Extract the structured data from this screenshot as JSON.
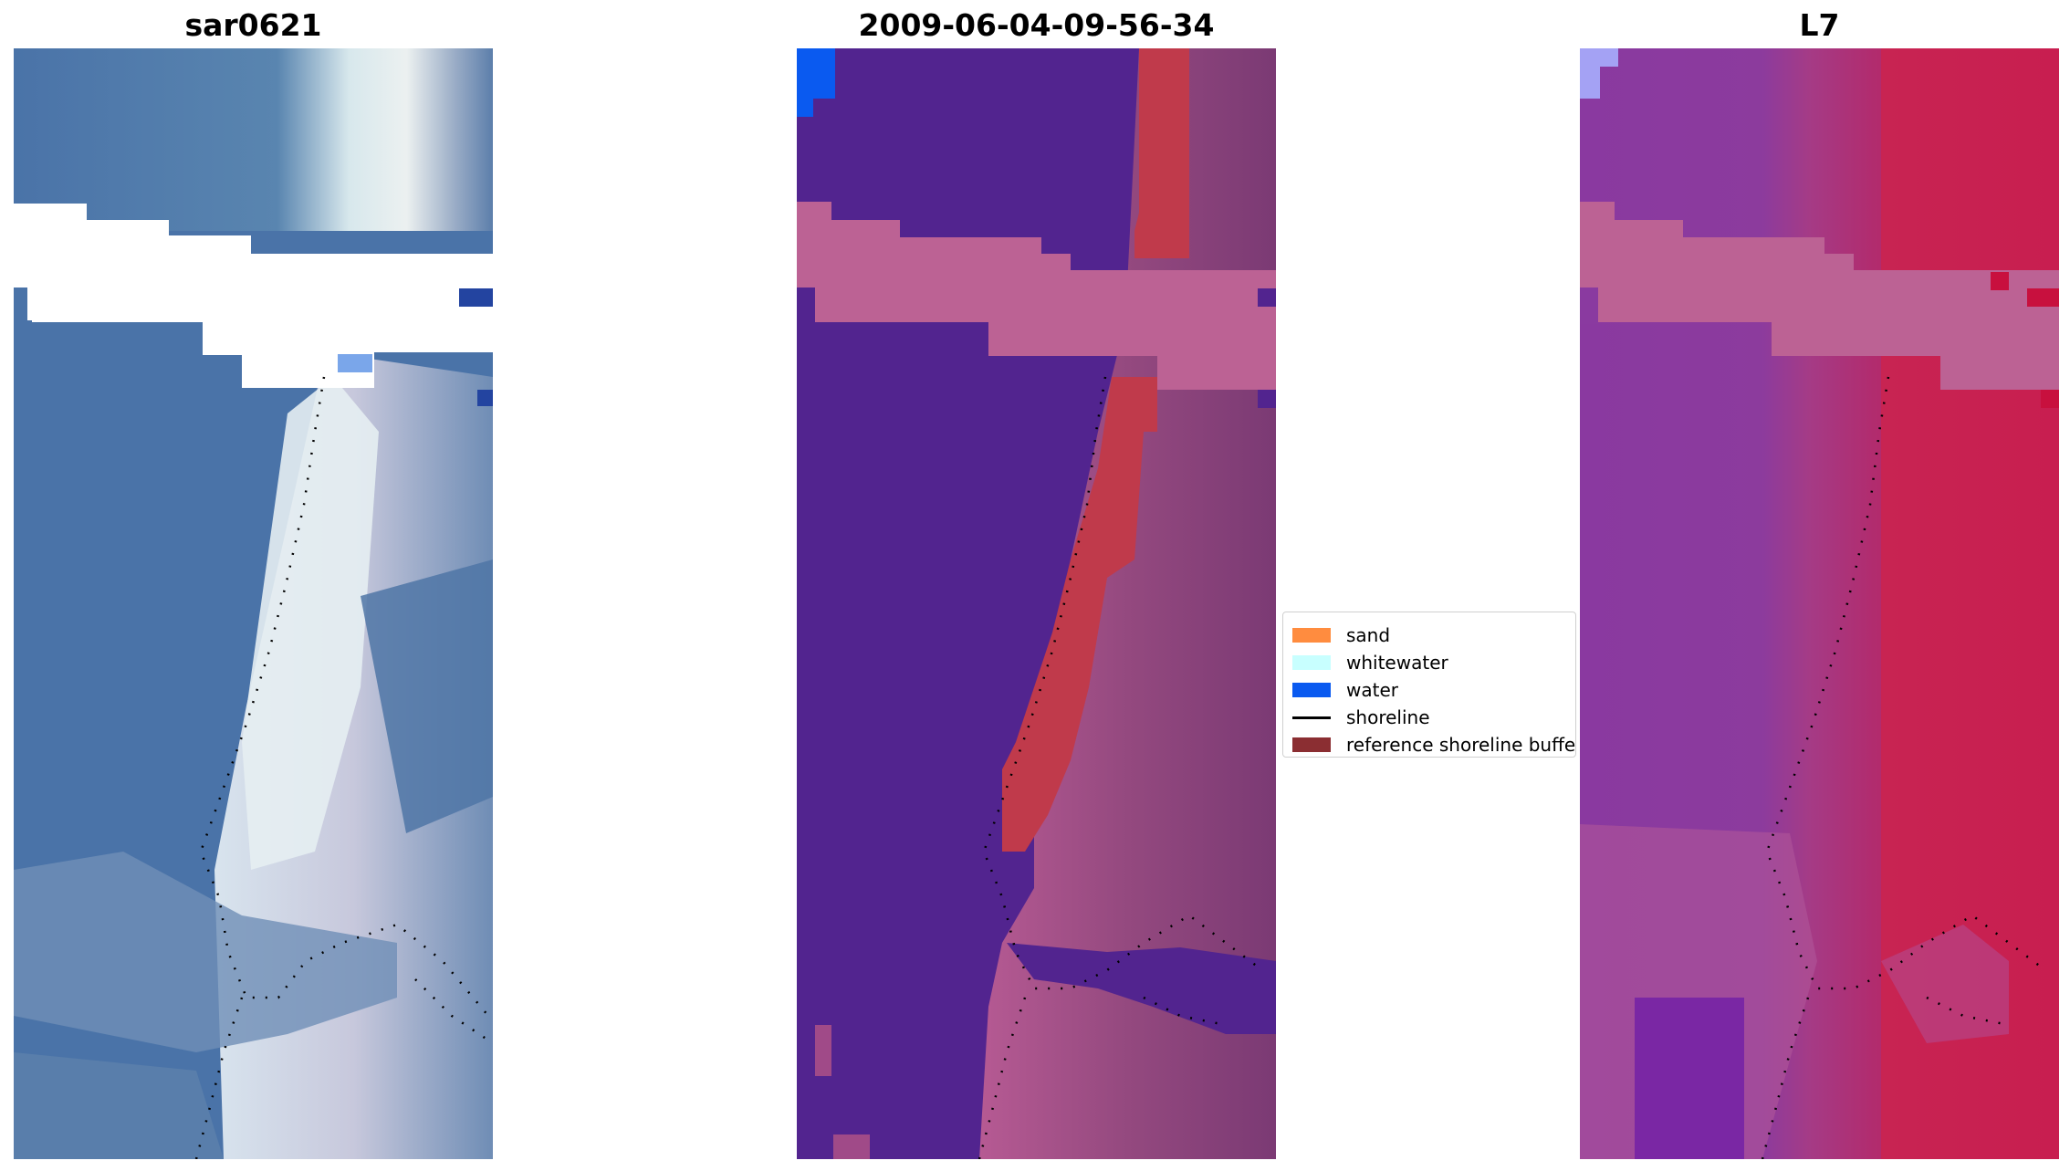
{
  "figure": {
    "titles": [
      "sar0621",
      "2009-06-04-09-56-34",
      "L7"
    ]
  },
  "legend": {
    "items": [
      {
        "label": "sand",
        "kind": "patch",
        "color": "#ff8c3f"
      },
      {
        "label": "whitewater",
        "kind": "patch",
        "color": "#c8ffff"
      },
      {
        "label": "water",
        "kind": "patch",
        "color": "#0a5af0"
      },
      {
        "label": "shoreline",
        "kind": "line",
        "color": "#000000"
      },
      {
        "label": "reference shoreline buffer",
        "kind": "patch",
        "color": "#8b2e32"
      }
    ]
  },
  "colors": {
    "rgb_water": "#4a73a8",
    "rgb_surf": "#e8f2f5",
    "class_water": "#52248f",
    "class_buffer": "#bc6294",
    "class_sand_red": "#c03a4b",
    "class_land": "#8a4a80",
    "ndwi_low": "#8a3aa0",
    "ndwi_high": "#c81e50",
    "nodata": "#ffffff",
    "shoreline": "#000000"
  }
}
